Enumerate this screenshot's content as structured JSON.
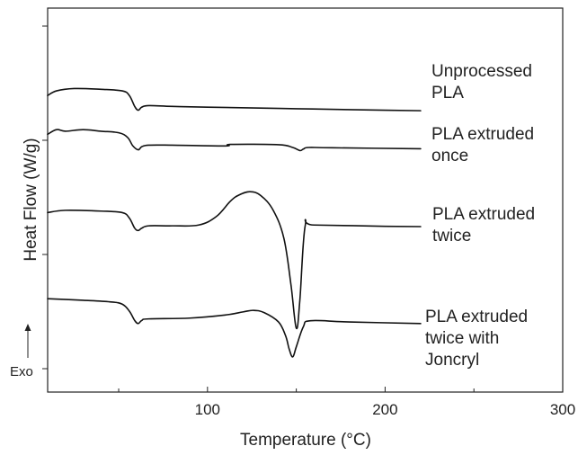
{
  "chart_data": {
    "type": "line",
    "title": "",
    "xlabel": "Temperature (°C)",
    "ylabel": "Heat Flow (W/g)",
    "xlim": [
      10,
      300
    ],
    "x_ticks": [
      100,
      200,
      300
    ],
    "y_tick_labels_shown": false,
    "grid": false,
    "legend": "none (curves labelled directly at right end)",
    "exo_marker": "Exo",
    "series": [
      {
        "name": "Unprocessed PLA",
        "label_lines": [
          "Unprocessed",
          "PLA"
        ],
        "points": [
          [
            10,
            0.87
          ],
          [
            15,
            0.9
          ],
          [
            25,
            0.915
          ],
          [
            40,
            0.91
          ],
          [
            52,
            0.9
          ],
          [
            56,
            0.87
          ],
          [
            59,
            0.8
          ],
          [
            61,
            0.775
          ],
          [
            63,
            0.795
          ],
          [
            67,
            0.805
          ],
          [
            80,
            0.8
          ],
          [
            100,
            0.795
          ],
          [
            150,
            0.785
          ],
          [
            200,
            0.775
          ],
          [
            220,
            0.772
          ]
        ]
      },
      {
        "name": "PLA extruded once",
        "label_lines": [
          "PLA extruded",
          "once"
        ],
        "points": [
          [
            10,
            0.62
          ],
          [
            15,
            0.65
          ],
          [
            20,
            0.64
          ],
          [
            30,
            0.65
          ],
          [
            40,
            0.64
          ],
          [
            50,
            0.63
          ],
          [
            55,
            0.6
          ],
          [
            58,
            0.545
          ],
          [
            61,
            0.52
          ],
          [
            63,
            0.54
          ],
          [
            67,
            0.55
          ],
          [
            80,
            0.55
          ],
          [
            110,
            0.545
          ],
          [
            113,
            0.555
          ],
          [
            140,
            0.553
          ],
          [
            148,
            0.535
          ],
          [
            152,
            0.515
          ],
          [
            154,
            0.525
          ],
          [
            157,
            0.535
          ],
          [
            170,
            0.533
          ],
          [
            220,
            0.527
          ]
        ]
      },
      {
        "name": "PLA extruded twice",
        "label_lines": [
          "PLA extruded",
          "twice"
        ],
        "points": [
          [
            10,
            0.115
          ],
          [
            20,
            0.13
          ],
          [
            40,
            0.125
          ],
          [
            52,
            0.115
          ],
          [
            56,
            0.08
          ],
          [
            59,
            0.015
          ],
          [
            61,
            0.0
          ],
          [
            63,
            0.015
          ],
          [
            67,
            0.03
          ],
          [
            80,
            0.03
          ],
          [
            95,
            0.035
          ],
          [
            105,
            0.09
          ],
          [
            113,
            0.19
          ],
          [
            118,
            0.23
          ],
          [
            124,
            0.25
          ],
          [
            130,
            0.225
          ],
          [
            137,
            0.13
          ],
          [
            143,
            -0.05
          ],
          [
            147,
            -0.35
          ],
          [
            150,
            -0.63
          ],
          [
            152,
            -0.45
          ],
          [
            155,
            0.03
          ],
          [
            160,
            0.035
          ],
          [
            200,
            0.027
          ],
          [
            220,
            0.025
          ]
        ]
      },
      {
        "name": "PLA extruded twice with Joncryl",
        "label_lines": [
          "PLA extruded",
          "twice with",
          "Joncryl"
        ],
        "points": [
          [
            10,
            -0.44
          ],
          [
            30,
            -0.45
          ],
          [
            45,
            -0.46
          ],
          [
            52,
            -0.475
          ],
          [
            56,
            -0.52
          ],
          [
            59,
            -0.58
          ],
          [
            61,
            -0.6
          ],
          [
            63,
            -0.58
          ],
          [
            67,
            -0.57
          ],
          [
            90,
            -0.565
          ],
          [
            110,
            -0.545
          ],
          [
            120,
            -0.525
          ],
          [
            126,
            -0.515
          ],
          [
            132,
            -0.53
          ],
          [
            140,
            -0.59
          ],
          [
            144,
            -0.68
          ],
          [
            146,
            -0.765
          ],
          [
            148,
            -0.815
          ],
          [
            150,
            -0.75
          ],
          [
            154,
            -0.62
          ],
          [
            158,
            -0.582
          ],
          [
            180,
            -0.59
          ],
          [
            220,
            -0.6
          ]
        ]
      }
    ]
  }
}
